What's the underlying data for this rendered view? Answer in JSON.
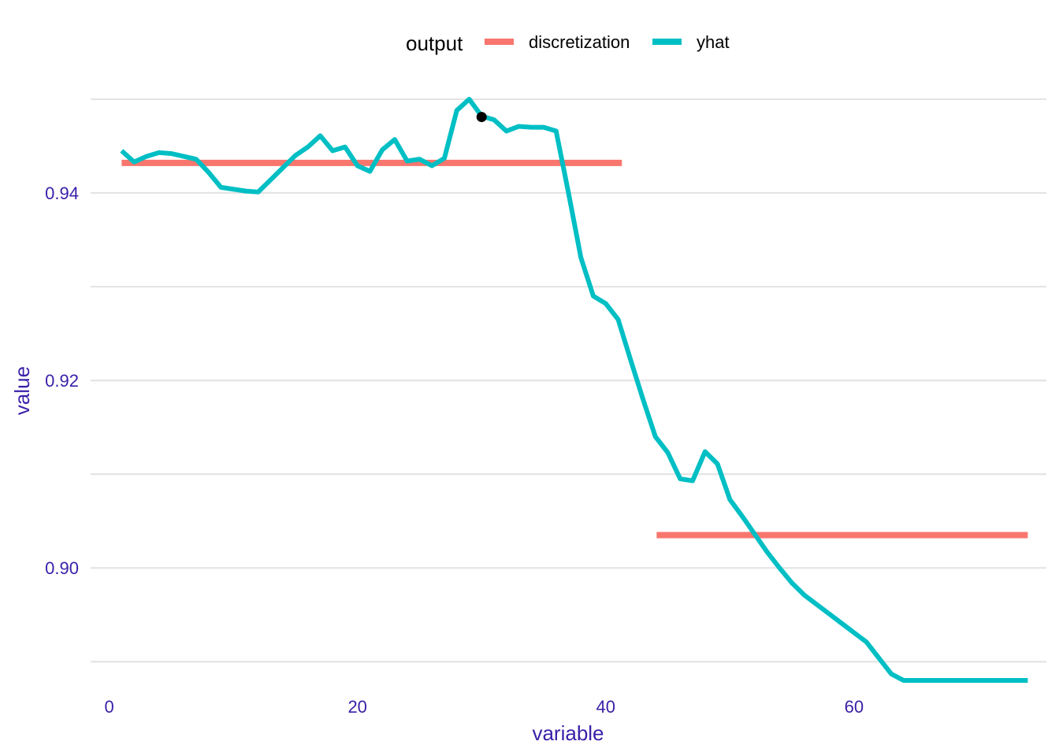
{
  "chart_data": {
    "type": "line",
    "xlabel": "variable",
    "ylabel": "value",
    "xlim": [
      -1.5,
      75.5
    ],
    "ylim": [
      0.8875,
      0.9505
    ],
    "x_ticks": [
      0,
      20,
      40,
      60
    ],
    "x_tick_labels": [
      "0",
      "20",
      "40",
      "60"
    ],
    "y_ticks": [
      0.9,
      0.92,
      0.94
    ],
    "y_tick_labels": [
      "0.90",
      "0.92",
      "0.94"
    ],
    "y_gridlines": [
      0.89,
      0.9,
      0.91,
      0.92,
      0.93,
      0.94,
      0.95
    ],
    "grid": true,
    "legend": {
      "title": "output",
      "position": "top",
      "entries": [
        {
          "label": "discretization",
          "color": "#F8766D"
        },
        {
          "label": "yhat",
          "color": "#00BFC4"
        }
      ]
    },
    "series": [
      {
        "name": "discretization",
        "color": "#F8766D",
        "segments": [
          {
            "x": [
              1,
              41.3
            ],
            "y": [
              0.9432,
              0.9432
            ]
          },
          {
            "x": [
              44.1,
              74
            ],
            "y": [
              0.9035,
              0.9035
            ]
          }
        ]
      },
      {
        "name": "yhat",
        "color": "#00BFC4",
        "x": [
          1,
          2,
          3,
          4,
          5,
          6,
          7,
          8,
          9,
          10,
          11,
          12,
          13,
          14,
          15,
          16,
          17,
          18,
          19,
          20,
          21,
          22,
          23,
          24,
          25,
          26,
          27,
          28,
          29,
          30,
          31,
          32,
          33,
          34,
          35,
          36,
          37,
          38,
          39,
          40,
          41,
          42,
          43,
          44,
          45,
          46,
          47,
          48,
          49,
          50,
          51,
          52,
          53,
          54,
          55,
          56,
          57,
          58,
          59,
          60,
          61,
          62,
          63,
          64,
          65,
          66,
          67,
          68,
          69,
          70,
          71,
          72,
          73,
          74
        ],
        "y": [
          0.9445,
          0.9433,
          0.9439,
          0.9443,
          0.9442,
          0.9439,
          0.9436,
          0.9422,
          0.9406,
          0.9404,
          0.9402,
          0.9401,
          0.9414,
          0.9427,
          0.944,
          0.9449,
          0.9461,
          0.9445,
          0.9449,
          0.9429,
          0.9423,
          0.9446,
          0.9457,
          0.9434,
          0.9436,
          0.9429,
          0.9437,
          0.9488,
          0.95,
          0.9482,
          0.9478,
          0.9466,
          0.9471,
          0.947,
          0.947,
          0.9466,
          0.94,
          0.9331,
          0.929,
          0.9282,
          0.9265,
          0.9222,
          0.918,
          0.914,
          0.9123,
          0.9095,
          0.9093,
          0.9124,
          0.9111,
          0.9073,
          0.9055,
          0.9036,
          0.9017,
          0.9,
          0.8984,
          0.8971,
          0.8961,
          0.8951,
          0.8941,
          0.8931,
          0.8921,
          0.8904,
          0.8887,
          0.888,
          0.888,
          0.888,
          0.888,
          0.888,
          0.888,
          0.888,
          0.888,
          0.888,
          0.888,
          0.888
        ]
      }
    ],
    "highlight_point": {
      "x": 30,
      "y": 0.9481,
      "color": "#000000"
    }
  }
}
